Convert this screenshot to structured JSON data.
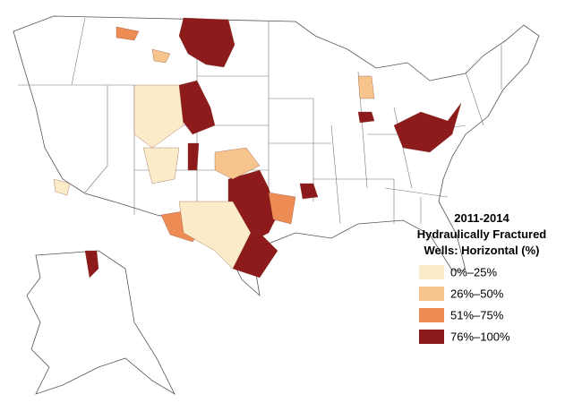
{
  "legend": {
    "title_lines": [
      "2011-2014",
      "Hydraulically Fractured",
      "Wells: Horizontal (%)"
    ],
    "items": [
      {
        "label": "0%–25%",
        "color": "#fcebc9"
      },
      {
        "label": "26%–50%",
        "color": "#f6c48c"
      },
      {
        "label": "51%–75%",
        "color": "#ee8c56"
      },
      {
        "label": "76%–100%",
        "color": "#8e1b1b"
      }
    ]
  }
}
